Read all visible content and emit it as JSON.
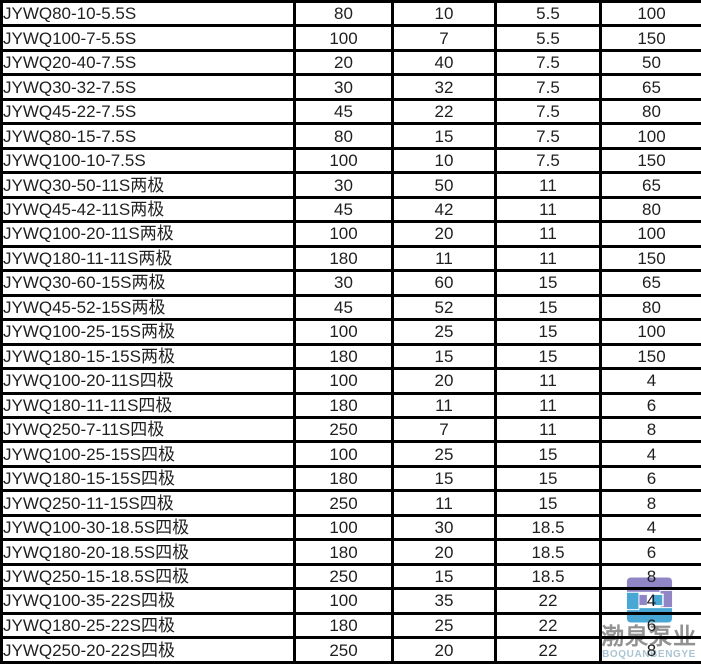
{
  "colors": {
    "background": "#ffffff",
    "border": "#000000",
    "text": "#1f1f1f",
    "watermark_cn": "#8d8d8d",
    "watermark_en": "#a7c0d0",
    "logo_purple": "#8b80c3",
    "logo_blue": "#3fa3d3"
  },
  "table": {
    "rows": [
      [
        "JYWQ80-10-5.5S",
        "80",
        "10",
        "5.5",
        "100"
      ],
      [
        "JYWQ100-7-5.5S",
        "100",
        "7",
        "5.5",
        "150"
      ],
      [
        "JYWQ20-40-7.5S",
        "20",
        "40",
        "7.5",
        "50"
      ],
      [
        "JYWQ30-32-7.5S",
        "30",
        "32",
        "7.5",
        "65"
      ],
      [
        "JYWQ45-22-7.5S",
        "45",
        "22",
        "7.5",
        "80"
      ],
      [
        "JYWQ80-15-7.5S",
        "80",
        "15",
        "7.5",
        "100"
      ],
      [
        "JYWQ100-10-7.5S",
        "100",
        "10",
        "7.5",
        "150"
      ],
      [
        "JYWQ30-50-11S两极",
        "30",
        "50",
        "11",
        "65"
      ],
      [
        "JYWQ45-42-11S两极",
        "45",
        "42",
        "11",
        "80"
      ],
      [
        "JYWQ100-20-11S两极",
        "100",
        "20",
        "11",
        "100"
      ],
      [
        "JYWQ180-11-11S两极",
        "180",
        "11",
        "11",
        "150"
      ],
      [
        "JYWQ30-60-15S两极",
        "30",
        "60",
        "15",
        "65"
      ],
      [
        "JYWQ45-52-15S两极",
        "45",
        "52",
        "15",
        "80"
      ],
      [
        "JYWQ100-25-15S两极",
        "100",
        "25",
        "15",
        "100"
      ],
      [
        "JYWQ180-15-15S两极",
        "180",
        "15",
        "15",
        "150"
      ],
      [
        "JYWQ100-20-11S四极",
        "100",
        "20",
        "11",
        "4"
      ],
      [
        "JYWQ180-11-11S四极",
        "180",
        "11",
        "11",
        "6"
      ],
      [
        "JYWQ250-7-11S四极",
        "250",
        "7",
        "11",
        "8"
      ],
      [
        "JYWQ100-25-15S四极",
        "100",
        "25",
        "15",
        "4"
      ],
      [
        "JYWQ180-15-15S四极",
        "180",
        "15",
        "15",
        "6"
      ],
      [
        "JYWQ250-11-15S四极",
        "250",
        "11",
        "15",
        "8"
      ],
      [
        "JYWQ100-30-18.5S四极",
        "100",
        "30",
        "18.5",
        "4"
      ],
      [
        "JYWQ180-20-18.5S四极",
        "180",
        "20",
        "18.5",
        "6"
      ],
      [
        "JYWQ250-15-18.5S四极",
        "250",
        "15",
        "18.5",
        "8"
      ],
      [
        "JYWQ100-35-22S四极",
        "100",
        "35",
        "22",
        "4"
      ],
      [
        "JYWQ180-25-22S四极",
        "180",
        "25",
        "22",
        "6"
      ],
      [
        "JYWQ250-20-22S四极",
        "250",
        "20",
        "22",
        "8"
      ]
    ]
  },
  "watermark": {
    "cn_text": "渤泉泵业",
    "en_text": "BOQUANBENGYE"
  }
}
